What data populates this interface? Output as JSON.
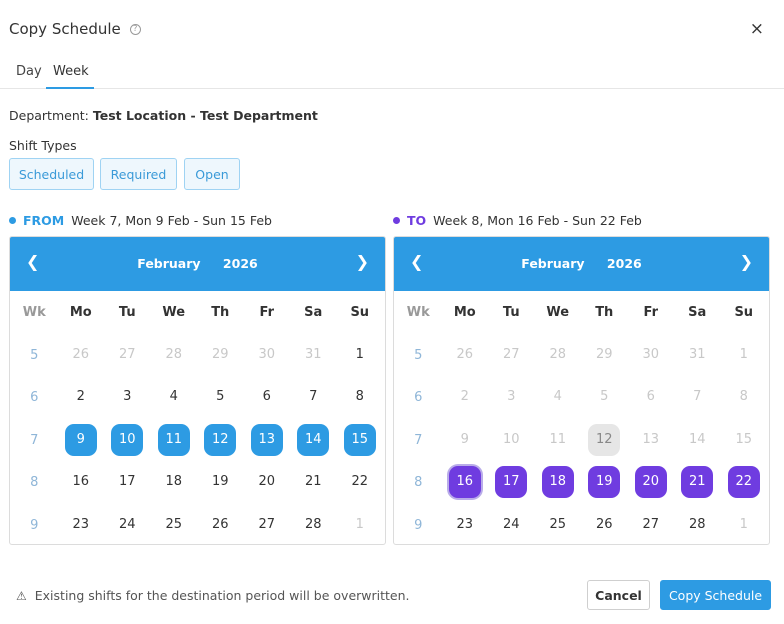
{
  "modal": {
    "title": "Copy Schedule",
    "help_glyph": "?",
    "close_glyph": "×"
  },
  "tabs": [
    {
      "label": "Day"
    },
    {
      "label": "Week"
    }
  ],
  "department": {
    "label": "Department:",
    "value": "Test Location - Test Department"
  },
  "shift_types": {
    "label": "Shift Types",
    "options": [
      "Scheduled",
      "Required",
      "Open"
    ]
  },
  "from": {
    "keyword": "FROM",
    "range": "Week 7, Mon 9 Feb - Sun 15 Feb",
    "calendar": {
      "month": "February",
      "year": "2026",
      "headers": [
        "Wk",
        "Mo",
        "Tu",
        "We",
        "Th",
        "Fr",
        "Sa",
        "Su"
      ],
      "weeks": [
        {
          "wk": "5",
          "days": [
            {
              "d": "26",
              "s": "muted"
            },
            {
              "d": "27",
              "s": "muted"
            },
            {
              "d": "28",
              "s": "muted"
            },
            {
              "d": "29",
              "s": "muted"
            },
            {
              "d": "30",
              "s": "muted"
            },
            {
              "d": "31",
              "s": "muted"
            },
            {
              "d": "1",
              "s": ""
            }
          ]
        },
        {
          "wk": "6",
          "days": [
            {
              "d": "2",
              "s": ""
            },
            {
              "d": "3",
              "s": ""
            },
            {
              "d": "4",
              "s": ""
            },
            {
              "d": "5",
              "s": ""
            },
            {
              "d": "6",
              "s": ""
            },
            {
              "d": "7",
              "s": ""
            },
            {
              "d": "8",
              "s": ""
            }
          ]
        },
        {
          "wk": "7",
          "days": [
            {
              "d": "9",
              "s": "selected"
            },
            {
              "d": "10",
              "s": "selected"
            },
            {
              "d": "11",
              "s": "selected"
            },
            {
              "d": "12",
              "s": "selected"
            },
            {
              "d": "13",
              "s": "selected"
            },
            {
              "d": "14",
              "s": "selected"
            },
            {
              "d": "15",
              "s": "selected"
            }
          ]
        },
        {
          "wk": "8",
          "days": [
            {
              "d": "16",
              "s": ""
            },
            {
              "d": "17",
              "s": ""
            },
            {
              "d": "18",
              "s": ""
            },
            {
              "d": "19",
              "s": ""
            },
            {
              "d": "20",
              "s": ""
            },
            {
              "d": "21",
              "s": ""
            },
            {
              "d": "22",
              "s": ""
            }
          ]
        },
        {
          "wk": "9",
          "days": [
            {
              "d": "23",
              "s": ""
            },
            {
              "d": "24",
              "s": ""
            },
            {
              "d": "25",
              "s": ""
            },
            {
              "d": "26",
              "s": ""
            },
            {
              "d": "27",
              "s": ""
            },
            {
              "d": "28",
              "s": ""
            },
            {
              "d": "1",
              "s": "muted"
            }
          ]
        }
      ]
    }
  },
  "to": {
    "keyword": "TO",
    "range": "Week 8, Mon 16 Feb - Sun 22 Feb",
    "calendar": {
      "month": "February",
      "year": "2026",
      "headers": [
        "Wk",
        "Mo",
        "Tu",
        "We",
        "Th",
        "Fr",
        "Sa",
        "Su"
      ],
      "weeks": [
        {
          "wk": "5",
          "days": [
            {
              "d": "26",
              "s": "muted"
            },
            {
              "d": "27",
              "s": "muted"
            },
            {
              "d": "28",
              "s": "muted"
            },
            {
              "d": "29",
              "s": "muted"
            },
            {
              "d": "30",
              "s": "muted"
            },
            {
              "d": "31",
              "s": "muted"
            },
            {
              "d": "1",
              "s": "muted"
            }
          ]
        },
        {
          "wk": "6",
          "days": [
            {
              "d": "2",
              "s": "muted"
            },
            {
              "d": "3",
              "s": "muted"
            },
            {
              "d": "4",
              "s": "muted"
            },
            {
              "d": "5",
              "s": "muted"
            },
            {
              "d": "6",
              "s": "muted"
            },
            {
              "d": "7",
              "s": "muted"
            },
            {
              "d": "8",
              "s": "muted"
            }
          ]
        },
        {
          "wk": "7",
          "days": [
            {
              "d": "9",
              "s": "muted"
            },
            {
              "d": "10",
              "s": "muted"
            },
            {
              "d": "11",
              "s": "muted"
            },
            {
              "d": "12",
              "s": "today"
            },
            {
              "d": "13",
              "s": "muted"
            },
            {
              "d": "14",
              "s": "muted"
            },
            {
              "d": "15",
              "s": "muted"
            }
          ]
        },
        {
          "wk": "8",
          "days": [
            {
              "d": "16",
              "s": "selected-focus"
            },
            {
              "d": "17",
              "s": "selected"
            },
            {
              "d": "18",
              "s": "selected"
            },
            {
              "d": "19",
              "s": "selected"
            },
            {
              "d": "20",
              "s": "selected"
            },
            {
              "d": "21",
              "s": "selected"
            },
            {
              "d": "22",
              "s": "selected"
            }
          ]
        },
        {
          "wk": "9",
          "days": [
            {
              "d": "23",
              "s": ""
            },
            {
              "d": "24",
              "s": ""
            },
            {
              "d": "25",
              "s": ""
            },
            {
              "d": "26",
              "s": ""
            },
            {
              "d": "27",
              "s": ""
            },
            {
              "d": "28",
              "s": ""
            },
            {
              "d": "1",
              "s": "muted"
            }
          ]
        }
      ]
    }
  },
  "footer": {
    "warning_glyph": "⚠",
    "warning": "Existing shifts for the destination period will be overwritten.",
    "cancel_label": "Cancel",
    "copy_label": "Copy Schedule"
  },
  "colors": {
    "accent": "#2d9be3",
    "to_accent": "#6f3ce0"
  }
}
